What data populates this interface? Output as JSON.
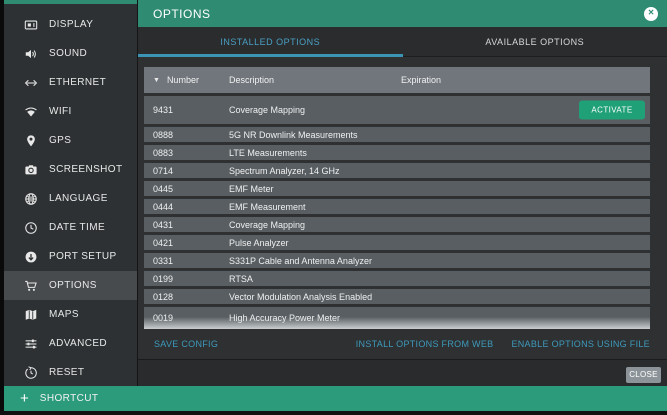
{
  "window": {
    "title": "OPTIONS"
  },
  "sidebar": {
    "items": [
      {
        "label": "DISPLAY",
        "icon": "display-icon",
        "selected": false
      },
      {
        "label": "SOUND",
        "icon": "sound-icon",
        "selected": false
      },
      {
        "label": "ETHERNET",
        "icon": "ethernet-icon",
        "selected": false
      },
      {
        "label": "WIFI",
        "icon": "wifi-icon",
        "selected": false
      },
      {
        "label": "GPS",
        "icon": "gps-icon",
        "selected": false
      },
      {
        "label": "SCREENSHOT",
        "icon": "screenshot-icon",
        "selected": false
      },
      {
        "label": "LANGUAGE",
        "icon": "language-icon",
        "selected": false
      },
      {
        "label": "DATE TIME",
        "icon": "clock-icon",
        "selected": false
      },
      {
        "label": "PORT SETUP",
        "icon": "port-setup-icon",
        "selected": false
      },
      {
        "label": "OPTIONS",
        "icon": "cart-icon",
        "selected": true
      },
      {
        "label": "MAPS",
        "icon": "map-icon",
        "selected": false
      },
      {
        "label": "ADVANCED",
        "icon": "sliders-icon",
        "selected": false
      },
      {
        "label": "RESET",
        "icon": "reset-icon",
        "selected": false
      }
    ],
    "shortcut_label": "SHORTCUT"
  },
  "tabs": [
    {
      "label": "INSTALLED OPTIONS",
      "active": true
    },
    {
      "label": "AVAILABLE OPTIONS",
      "active": false
    }
  ],
  "table": {
    "columns": [
      "Number",
      "Description",
      "Expiration"
    ],
    "sort_icon": "▼",
    "rows": [
      {
        "number": "9431",
        "description": "Coverage Mapping",
        "expiration": "",
        "action": "ACTIVATE"
      },
      {
        "number": "0888",
        "description": "5G NR Downlink Measurements",
        "expiration": ""
      },
      {
        "number": "0883",
        "description": "LTE Measurements",
        "expiration": ""
      },
      {
        "number": "0714",
        "description": "Spectrum Analyzer, 14 GHz",
        "expiration": ""
      },
      {
        "number": "0445",
        "description": "EMF Meter",
        "expiration": ""
      },
      {
        "number": "0444",
        "description": "EMF Measurement",
        "expiration": ""
      },
      {
        "number": "0431",
        "description": "Coverage Mapping",
        "expiration": ""
      },
      {
        "number": "0421",
        "description": "Pulse Analyzer",
        "expiration": ""
      },
      {
        "number": "0331",
        "description": "S331P Cable and Antenna Analyzer",
        "expiration": ""
      },
      {
        "number": "0199",
        "description": "RTSA",
        "expiration": ""
      },
      {
        "number": "0128",
        "description": "Vector Modulation Analysis Enabled",
        "expiration": ""
      },
      {
        "number": "0019",
        "description": "High Accuracy Power Meter",
        "expiration": "",
        "partial": true
      }
    ]
  },
  "actions": {
    "save_config": "SAVE CONFIG",
    "install_from_web": "INSTALL OPTIONS FROM WEB",
    "enable_using_file": "ENABLE OPTIONS USING FILE",
    "close": "CLOSE",
    "close_icon": "×",
    "shortcut_plus": "+"
  },
  "colors": {
    "header_green": "#2f8c73",
    "shortcut_green": "#2b9b7b",
    "activate_green": "#1fa077",
    "accent_blue": "#4aa0c4",
    "link_blue": "#3e9abb",
    "row_gray": "#585e62",
    "table_header_gray": "#70767b"
  }
}
